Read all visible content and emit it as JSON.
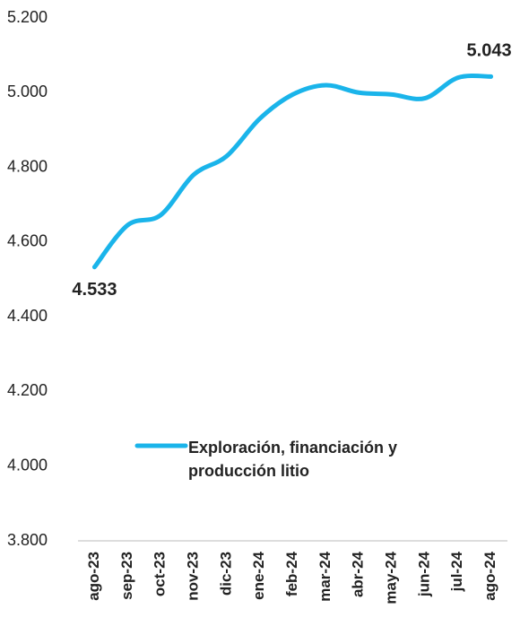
{
  "chart_data": {
    "type": "line",
    "categories": [
      "ago-23",
      "sep-23",
      "oct-23",
      "nov-23",
      "dic-23",
      "ene-24",
      "feb-24",
      "mar-24",
      "abr-24",
      "may-24",
      "jun-24",
      "jul-24",
      "ago-24"
    ],
    "series": [
      {
        "name": "Exploración, financiación y producción litio",
        "color": "#1ab4ea",
        "values": [
          4533,
          4645,
          4672,
          4780,
          4830,
          4930,
          4995,
          5020,
          5000,
          4995,
          4985,
          5040,
          5043
        ],
        "value_labels": [
          "4.533",
          null,
          null,
          null,
          null,
          null,
          null,
          null,
          null,
          null,
          null,
          null,
          "5.043"
        ]
      }
    ],
    "ylim": [
      3800,
      5200
    ],
    "yticks": [
      {
        "value": 3800,
        "label": "3.800"
      },
      {
        "value": 4000,
        "label": "4.000"
      },
      {
        "value": 4200,
        "label": "4.200"
      },
      {
        "value": 4400,
        "label": "4.400"
      },
      {
        "value": 4600,
        "label": "4.600"
      },
      {
        "value": 4800,
        "label": "4.800"
      },
      {
        "value": 5000,
        "label": "5.000"
      },
      {
        "value": 5200,
        "label": "5.200"
      }
    ],
    "grid": false
  }
}
